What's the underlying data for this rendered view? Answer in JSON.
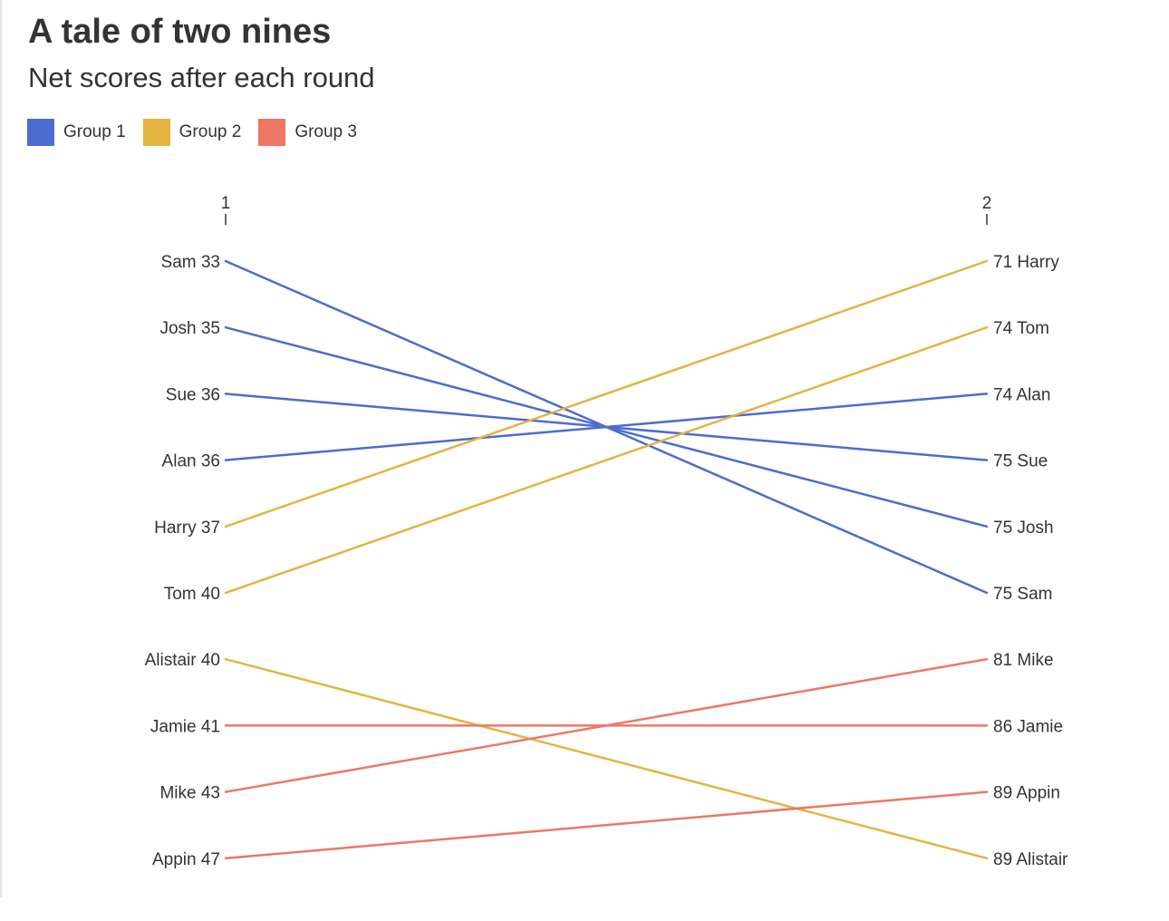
{
  "header": {
    "title": "A tale of two nines",
    "subtitle": "Net scores after each round"
  },
  "colors": {
    "Group 1": "#4e6bd0",
    "Group 2": "#e4b43f",
    "Group 3": "#ec7864",
    "text": "#333333"
  },
  "chart_data": {
    "type": "line",
    "title": "A tale of two nines",
    "subtitle": "Net scores after each round",
    "x": [
      "1",
      "2"
    ],
    "legend": [
      "Group 1",
      "Group 2",
      "Group 3"
    ],
    "legend_placement": "top-left",
    "grid": false,
    "left_ranking": [
      "Sam 33",
      "Josh 35",
      "Sue 36",
      "Alan 36",
      "Harry 37",
      "Tom 40",
      "Alistair 40",
      "Jamie 41",
      "Mike 43",
      "Appin 47"
    ],
    "right_ranking": [
      "71 Harry",
      "74 Tom",
      "74 Alan",
      "75 Sue",
      "75 Josh",
      "75 Sam",
      "81 Mike",
      "86 Jamie",
      "89 Appin",
      "89 Alistair"
    ],
    "series": [
      {
        "name": "Sam",
        "group": "Group 1",
        "values": [
          33,
          75
        ],
        "rank": [
          1,
          6
        ]
      },
      {
        "name": "Josh",
        "group": "Group 1",
        "values": [
          35,
          75
        ],
        "rank": [
          2,
          5
        ]
      },
      {
        "name": "Sue",
        "group": "Group 1",
        "values": [
          36,
          75
        ],
        "rank": [
          3,
          4
        ]
      },
      {
        "name": "Alan",
        "group": "Group 1",
        "values": [
          36,
          74
        ],
        "rank": [
          4,
          3
        ]
      },
      {
        "name": "Harry",
        "group": "Group 2",
        "values": [
          37,
          71
        ],
        "rank": [
          5,
          1
        ]
      },
      {
        "name": "Tom",
        "group": "Group 2",
        "values": [
          40,
          74
        ],
        "rank": [
          6,
          2
        ]
      },
      {
        "name": "Alistair",
        "group": "Group 2",
        "values": [
          40,
          89
        ],
        "rank": [
          7,
          10
        ]
      },
      {
        "name": "Jamie",
        "group": "Group 3",
        "values": [
          41,
          86
        ],
        "rank": [
          8,
          8
        ]
      },
      {
        "name": "Mike",
        "group": "Group 3",
        "values": [
          43,
          81
        ],
        "rank": [
          9,
          7
        ]
      },
      {
        "name": "Appin",
        "group": "Group 3",
        "values": [
          47,
          89
        ],
        "rank": [
          10,
          9
        ]
      }
    ]
  }
}
